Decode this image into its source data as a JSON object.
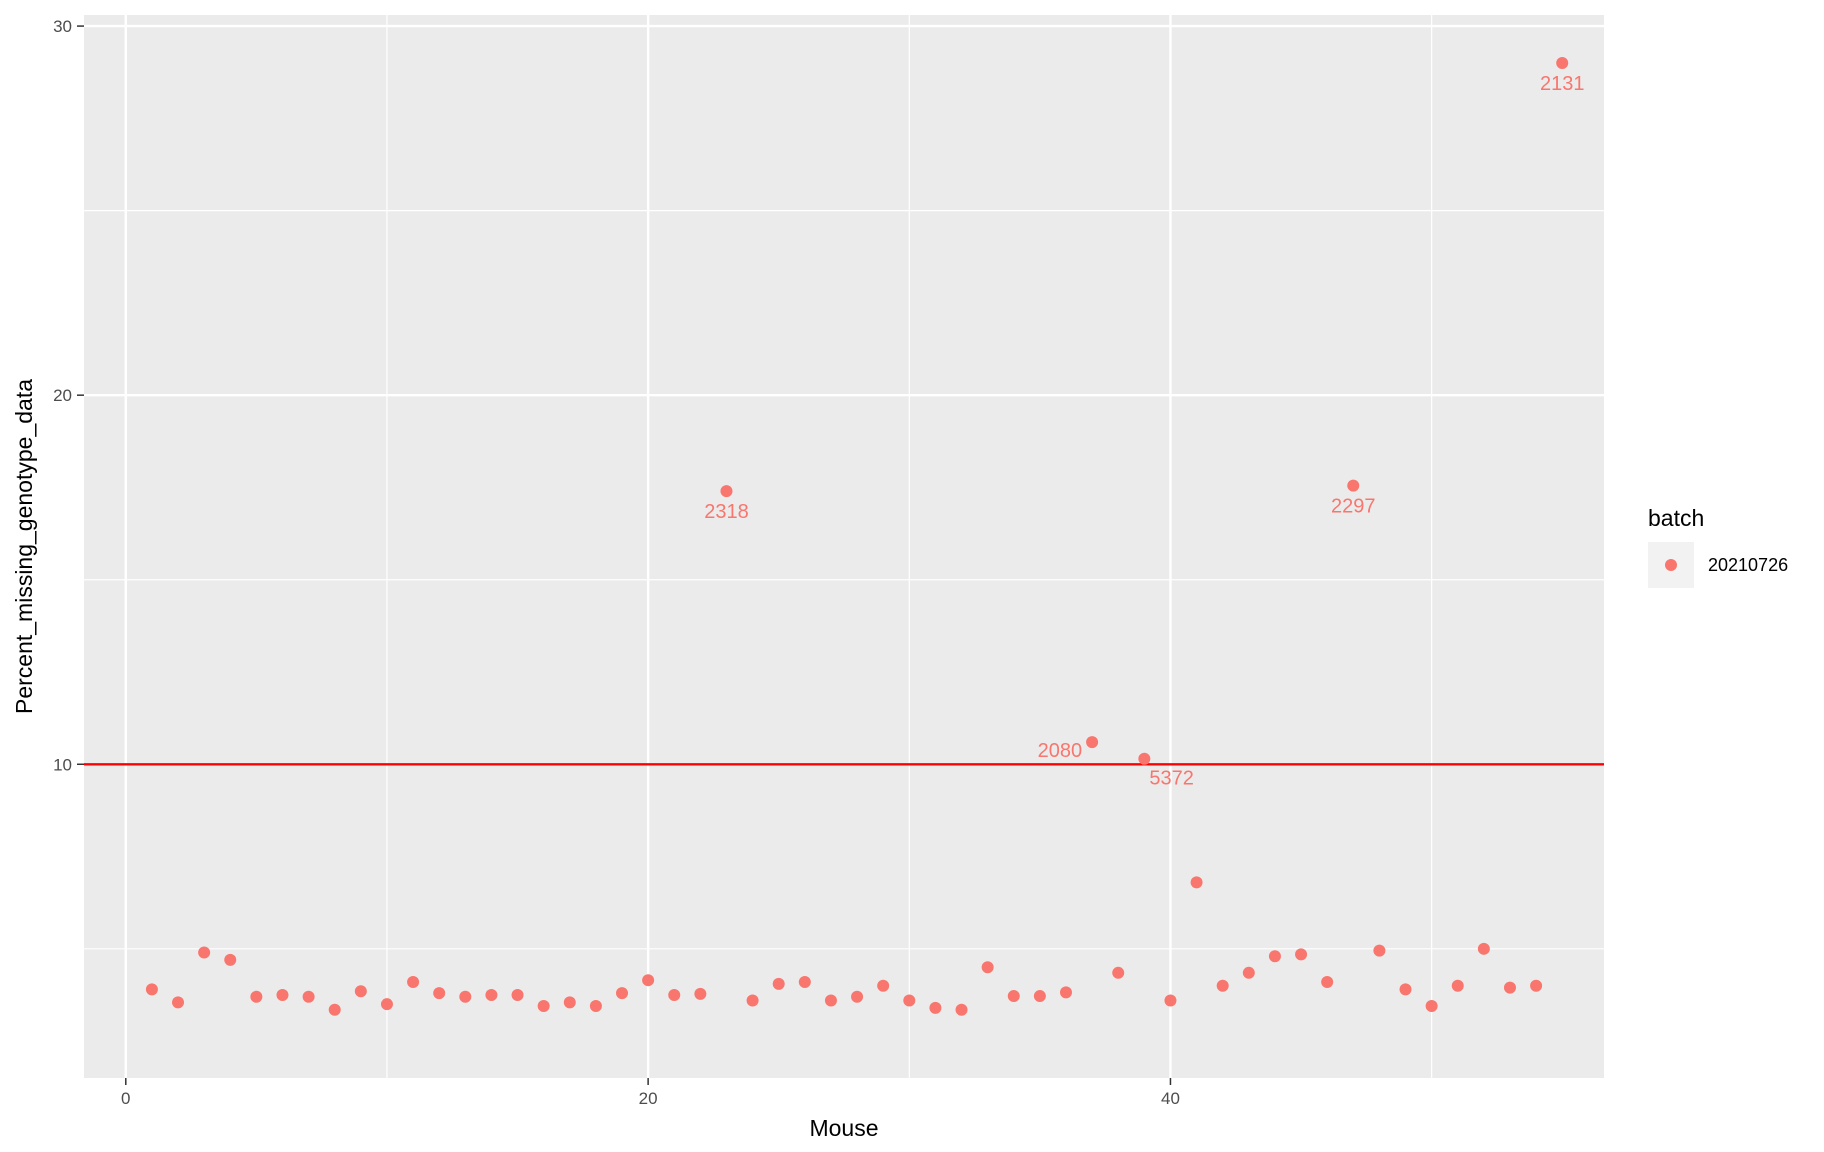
{
  "chart_data": {
    "type": "scatter",
    "title": "",
    "xlabel": "Mouse",
    "ylabel": "Percent_missing_genotype_data",
    "xlim": [
      -1.6,
      56.6
    ],
    "ylim": [
      1.5,
      30.3
    ],
    "x_ticks": [
      0,
      20,
      40
    ],
    "x_tick_labels": [
      "0",
      "20",
      "40"
    ],
    "x_minor_ticks": [
      10,
      30,
      50
    ],
    "y_ticks": [
      10,
      20,
      30
    ],
    "y_tick_labels": [
      "10",
      "20",
      "30"
    ],
    "y_minor_ticks": [
      5,
      15,
      25
    ],
    "grid": true,
    "reference_line": {
      "y": 10,
      "color": "#ff0000"
    },
    "legend": {
      "title": "batch",
      "position": "right",
      "entries": [
        {
          "label": "20210726",
          "color": "#f8766d"
        }
      ]
    },
    "series": [
      {
        "name": "20210726",
        "color": "#f8766d",
        "x": [
          1,
          2,
          3,
          4,
          5,
          6,
          7,
          8,
          9,
          10,
          11,
          12,
          13,
          14,
          15,
          16,
          17,
          18,
          19,
          20,
          21,
          22,
          23,
          24,
          25,
          26,
          27,
          28,
          29,
          30,
          31,
          32,
          33,
          34,
          35,
          36,
          37,
          38,
          39,
          40,
          41,
          42,
          43,
          44,
          45,
          46,
          47,
          48,
          49,
          50,
          51,
          52,
          53,
          54,
          55
        ],
        "y": [
          3.9,
          3.55,
          4.9,
          4.7,
          3.7,
          3.75,
          3.7,
          3.35,
          3.85,
          3.5,
          4.1,
          3.8,
          3.7,
          3.75,
          3.75,
          3.45,
          3.55,
          3.45,
          3.8,
          4.15,
          3.75,
          3.78,
          17.4,
          3.6,
          4.05,
          4.1,
          3.6,
          3.7,
          4.0,
          3.6,
          3.4,
          3.35,
          4.5,
          3.72,
          3.72,
          3.82,
          10.6,
          4.35,
          10.15,
          3.6,
          6.8,
          4.0,
          4.35,
          4.8,
          4.85,
          4.1,
          17.55,
          4.95,
          3.9,
          3.45,
          4.0,
          5.0,
          3.95,
          4.0,
          29.0
        ]
      }
    ],
    "annotations": [
      {
        "text": "2318",
        "x": 23,
        "y": 17.4,
        "position": "below"
      },
      {
        "text": "2297",
        "x": 47,
        "y": 17.55,
        "position": "below"
      },
      {
        "text": "2131",
        "x": 55,
        "y": 29.0,
        "position": "below"
      },
      {
        "text": "2080",
        "x": 37,
        "y": 10.6,
        "position": "left"
      },
      {
        "text": "5372",
        "x": 39,
        "y": 10.15,
        "position": "below-right"
      }
    ]
  }
}
